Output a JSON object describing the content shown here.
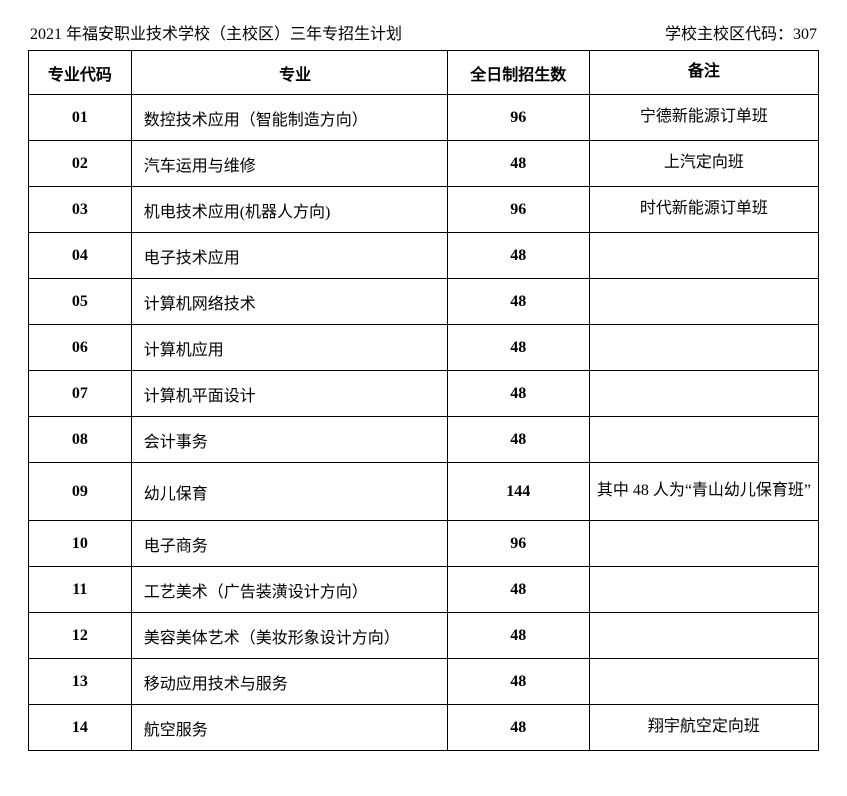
{
  "header": {
    "title_left": "2021 年福安职业技术学校（主校区）三年专招生计划",
    "title_right": "学校主校区代码：307"
  },
  "table": {
    "columns": [
      "专业代码",
      "专业",
      "全日制招生数",
      "备注"
    ],
    "rows": [
      {
        "code": "01",
        "major": "数控技术应用（智能制造方向）",
        "count": "96",
        "remark": "宁德新能源订单班"
      },
      {
        "code": "02",
        "major": "汽车运用与维修",
        "count": "48",
        "remark": "上汽定向班"
      },
      {
        "code": "03",
        "major": "机电技术应用(机器人方向)",
        "count": "96",
        "remark": "时代新能源订单班"
      },
      {
        "code": "04",
        "major": "电子技术应用",
        "count": "48",
        "remark": ""
      },
      {
        "code": "05",
        "major": "计算机网络技术",
        "count": "48",
        "remark": ""
      },
      {
        "code": "06",
        "major": "计算机应用",
        "count": "48",
        "remark": ""
      },
      {
        "code": "07",
        "major": "计算机平面设计",
        "count": "48",
        "remark": ""
      },
      {
        "code": "08",
        "major": "会计事务",
        "count": "48",
        "remark": ""
      },
      {
        "code": "09",
        "major": "幼儿保育",
        "count": "144",
        "remark": "其中 48 人为“青山幼儿保育班”",
        "tall": true
      },
      {
        "code": "10",
        "major": "电子商务",
        "count": "96",
        "remark": ""
      },
      {
        "code": "11",
        "major": "工艺美术（广告装潢设计方向）",
        "count": "48",
        "remark": ""
      },
      {
        "code": "12",
        "major": "美容美体艺术（美妆形象设计方向）",
        "count": "48",
        "remark": ""
      },
      {
        "code": "13",
        "major": "移动应用技术与服务",
        "count": "48",
        "remark": ""
      },
      {
        "code": "14",
        "major": "航空服务",
        "count": "48",
        "remark": "翔宇航空定向班"
      }
    ]
  }
}
